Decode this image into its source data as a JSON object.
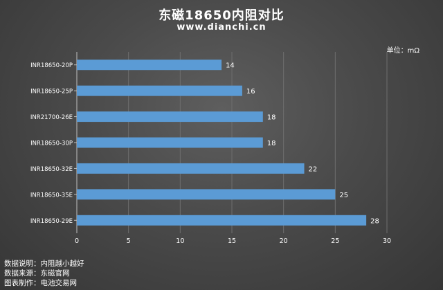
{
  "header": {
    "title": "东磁18650内阻对比",
    "subtitle": "www.dianchi.cn",
    "unit": "单位：mΩ"
  },
  "notes": [
    {
      "label": "数据说明：",
      "value": "内阻越小越好"
    },
    {
      "label": "数据来源：",
      "value": "东磁官网"
    },
    {
      "label": "图表制作：",
      "value": "电池交易网"
    }
  ],
  "colors": {
    "bar": "#5b9bd5",
    "grid": "#6e6e6e",
    "text": "#ffffff"
  },
  "chart_data": {
    "type": "bar",
    "orientation": "horizontal",
    "title": "东磁18650内阻对比",
    "subtitle": "www.dianchi.cn",
    "unit": "单位：mΩ",
    "categories": [
      "INR18650-20P",
      "INR18650-25P",
      "INR21700-26E",
      "INR18650-30P",
      "INR18650-32E",
      "INR18650-35E",
      "INR18650-29E"
    ],
    "values": [
      14,
      16,
      18,
      18,
      22,
      25,
      28
    ],
    "xlim": [
      0,
      30
    ],
    "xticks": [
      0,
      5,
      10,
      15,
      20,
      25,
      30
    ],
    "grid": true,
    "data_labels": true
  }
}
